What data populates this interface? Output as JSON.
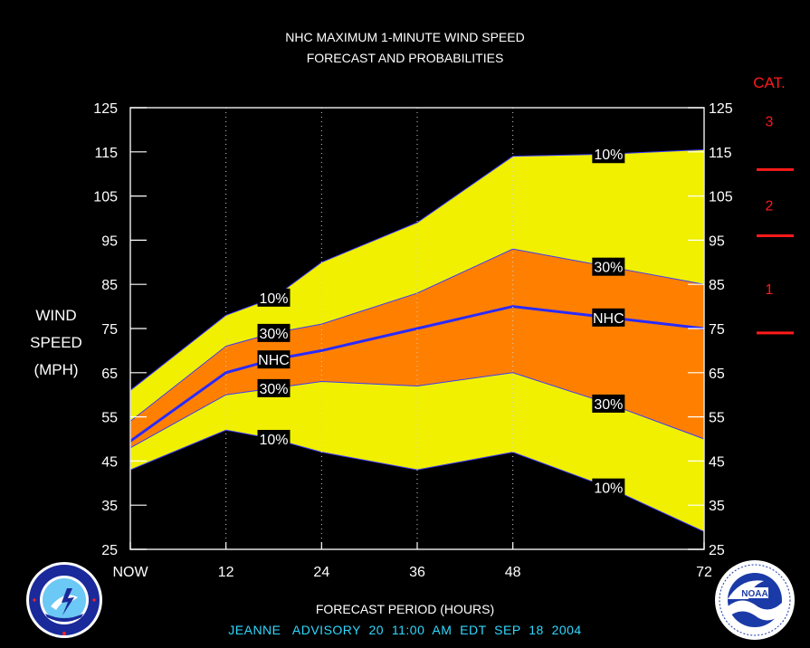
{
  "title_line1": "NHC MAXIMUM 1-MINUTE WIND SPEED",
  "title_line2": "FORECAST AND PROBABILITIES",
  "ylabel_lines": [
    "WIND",
    "SPEED",
    "(MPH)"
  ],
  "xlabel": "FORECAST PERIOD (HOURS)",
  "advisory": "JEANNE   ADVISORY  20  11:00  AM  EDT  SEP  18  2004",
  "category_title": "CAT.",
  "colors": {
    "background": "#000000",
    "outer_band": "#f0f000",
    "inner_band": "#ff8000",
    "nhc_line": "#2a2aff",
    "category": "#ff1a1a",
    "advisory_text": "#30d8ff"
  },
  "chart_data": {
    "type": "area",
    "x": [
      0,
      12,
      18,
      24,
      36,
      48,
      60,
      72
    ],
    "xtick_values": [
      0,
      12,
      24,
      36,
      48,
      72
    ],
    "xtick_labels": [
      "NOW",
      "12",
      "24",
      "36",
      "48",
      "72"
    ],
    "yticks": [
      25,
      35,
      45,
      55,
      65,
      75,
      85,
      95,
      105,
      115,
      125
    ],
    "xlim": [
      0,
      72
    ],
    "ylim": [
      25,
      125
    ],
    "grid": "dotted vertical lines at 12, 24, 36, 48",
    "series": [
      {
        "name": "10%",
        "values": [
          61,
          78,
          82,
          90,
          99,
          114,
          114.5,
          115.5
        ]
      },
      {
        "name": "30%",
        "values": [
          54,
          71,
          74,
          76,
          83,
          93,
          89,
          85
        ]
      },
      {
        "name": "NHC",
        "values": [
          49.5,
          65,
          68,
          70,
          75,
          80,
          77.5,
          75
        ]
      },
      {
        "name": "30%",
        "values": [
          48,
          60,
          61.5,
          63,
          62,
          65,
          58,
          50
        ]
      },
      {
        "name": "10%",
        "values": [
          43,
          52,
          50,
          47,
          43,
          47,
          39,
          29
        ]
      }
    ],
    "labels": [
      {
        "text": "10%",
        "x": 18,
        "y": 82
      },
      {
        "text": "30%",
        "x": 18,
        "y": 74
      },
      {
        "text": "NHC",
        "x": 18,
        "y": 68
      },
      {
        "text": "30%",
        "x": 18,
        "y": 61.5
      },
      {
        "text": "10%",
        "x": 18,
        "y": 50
      },
      {
        "text": "10%",
        "x": 60,
        "y": 114.5
      },
      {
        "text": "30%",
        "x": 60,
        "y": 89
      },
      {
        "text": "NHC",
        "x": 60,
        "y": 77.5
      },
      {
        "text": "30%",
        "x": 60,
        "y": 58
      },
      {
        "text": "10%",
        "x": 60,
        "y": 39
      }
    ],
    "category_labels": [
      {
        "text": "3",
        "y": 122
      },
      {
        "text": "2",
        "y": 103
      },
      {
        "text": "1",
        "y": 84
      }
    ],
    "category_thresholds": [
      111,
      96,
      74
    ]
  }
}
